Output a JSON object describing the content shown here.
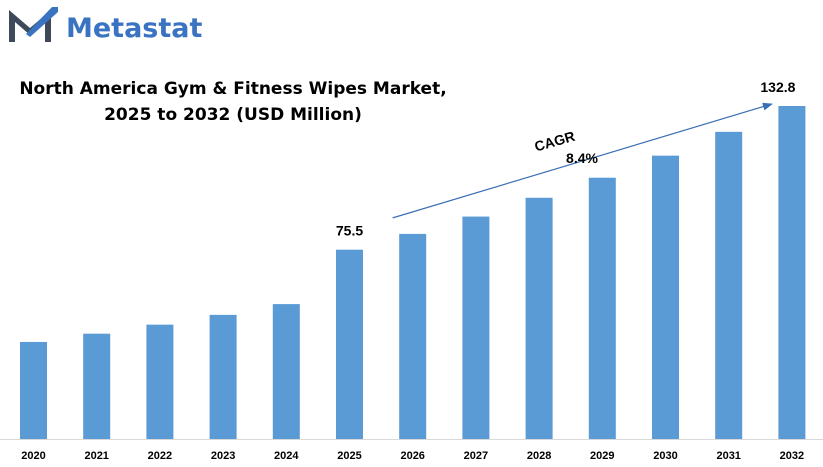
{
  "brand": {
    "name": "Metastat",
    "logo_icon": "metastat-m-logo",
    "color": "#3a73c2"
  },
  "chart_data": {
    "type": "bar",
    "title_lines": [
      "North America Gym & Fitness Wipes Market,",
      "2025 to 2032 (USD Million)"
    ],
    "xlabel": "",
    "ylabel": "",
    "categories": [
      "2020",
      "2021",
      "2022",
      "2023",
      "2024",
      "2025",
      "2026",
      "2027",
      "2028",
      "2029",
      "2030",
      "2031",
      "2032"
    ],
    "values": [
      38.7,
      42.0,
      45.6,
      49.5,
      53.8,
      75.5,
      81.8,
      88.7,
      96.2,
      104.2,
      113.0,
      122.5,
      132.8
    ],
    "data_labels": [
      {
        "category": "2025",
        "text": "75.5"
      },
      {
        "category": "2032",
        "text": "132.8"
      }
    ],
    "ylim": [
      0,
      140
    ],
    "grid": false,
    "legend": "none",
    "bar_color": "#5b9bd5",
    "annotation": {
      "label_line1": "CAGR",
      "label_line2": "8.4%",
      "arrow_color": "#3a6fb5",
      "from_category": "2026",
      "to_category": "2032"
    }
  }
}
